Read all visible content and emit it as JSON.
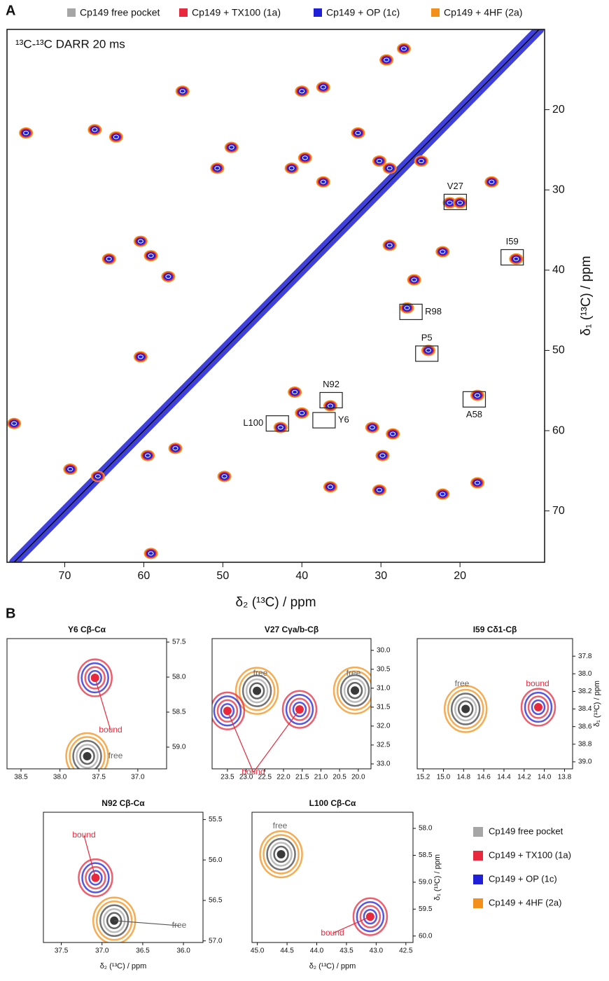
{
  "chart_data": [
    {
      "type": "contour",
      "panel_label": "A",
      "title": "¹³C-¹³C DARR 20 ms",
      "xlabel": "δ₂ (¹³C) / ppm",
      "ylabel": "δ₁ (¹³C) / ppm",
      "xlim": [
        77.3,
        9.3
      ],
      "ylim": [
        10,
        76.4
      ],
      "xticks": [
        70,
        60,
        50,
        40,
        30,
        20
      ],
      "yticks": [
        20,
        30,
        40,
        50,
        60,
        70
      ],
      "series": [
        {
          "name": "Cp149 free pocket",
          "color": "#a6a6a6"
        },
        {
          "name": "Cp149 + TX100 (1a)",
          "color": "#e8283c"
        },
        {
          "name": "Cp149 + OP (1c)",
          "color": "#1f1fd8"
        },
        {
          "name": "Cp149 + 4HF (2a)",
          "color": "#f39019"
        }
      ],
      "x": [
        74.9,
        66.2,
        63.5,
        55.1,
        48.9,
        50.7,
        41.3,
        39.6,
        37.3,
        32.9,
        30.2,
        28.9,
        40.0,
        37.3,
        29.3,
        27.1,
        24.9,
        21.3,
        20.0,
        16.0,
        22.2,
        12.9,
        28.9,
        25.8,
        26.7,
        60.4,
        59.1,
        56.9,
        64.4,
        60.4,
        40.9,
        40.0,
        42.7,
        36.4,
        31.1,
        28.5,
        29.8,
        30.2,
        22.2,
        17.8,
        17.8,
        24.0,
        69.3,
        65.8,
        59.5,
        56.0,
        49.8,
        36.4,
        76.4,
        59.1
      ],
      "values": [
        22.9,
        22.5,
        23.4,
        17.7,
        24.7,
        27.3,
        27.3,
        26.0,
        29.0,
        22.9,
        26.4,
        27.3,
        17.7,
        17.2,
        13.8,
        12.4,
        26.4,
        31.6,
        31.6,
        29.0,
        37.7,
        38.6,
        36.9,
        41.2,
        44.7,
        36.4,
        38.2,
        40.8,
        38.6,
        50.8,
        55.2,
        57.8,
        59.6,
        56.9,
        59.6,
        60.4,
        63.1,
        67.4,
        67.9,
        66.5,
        55.6,
        50.0,
        64.8,
        65.7,
        63.1,
        62.2,
        65.7,
        67.0,
        59.1,
        75.3
      ],
      "annotations": [
        {
          "text": "V27",
          "x": 20.6,
          "y": 31.5,
          "side": "top"
        },
        {
          "text": "I59",
          "x": 13.4,
          "y": 38.4,
          "side": "top"
        },
        {
          "text": "R98",
          "x": 26.2,
          "y": 45.2,
          "side": "right"
        },
        {
          "text": "P5",
          "x": 24.2,
          "y": 50.4,
          "side": "top"
        },
        {
          "text": "N92",
          "x": 36.3,
          "y": 56.2,
          "side": "top"
        },
        {
          "text": "Y6",
          "x": 37.2,
          "y": 58.7,
          "side": "right"
        },
        {
          "text": "L100",
          "x": 43.1,
          "y": 59.1,
          "side": "left"
        },
        {
          "text": "A58",
          "x": 18.2,
          "y": 56.1,
          "side": "bottom"
        }
      ]
    },
    {
      "type": "scatter",
      "panel_label": "B",
      "title": "Y6 Cβ-Cα",
      "xlim": [
        38.68,
        36.63
      ],
      "ylim": [
        57.45,
        59.31
      ],
      "xticks": [
        38.5,
        {
          "value": 38,
          "label": "38.0"
        },
        37.5,
        {
          "value": 37,
          "label": "37.0"
        }
      ],
      "yticks": [
        57.5,
        {
          "value": 58,
          "label": "58.0"
        },
        58.5,
        {
          "value": 59,
          "label": "59.0"
        }
      ],
      "series": [
        {
          "name": "free",
          "color": "#3a3a3a",
          "x": [
            37.65
          ],
          "values": [
            59.13
          ]
        },
        {
          "name": "bound",
          "color": "#e8283c",
          "x": [
            37.55
          ],
          "values": [
            58.01
          ]
        }
      ]
    },
    {
      "type": "scatter",
      "title": "V27 Cγa/b-Cβ",
      "xlim": [
        23.91,
        19.66
      ],
      "ylim": [
        29.69,
        33.13
      ],
      "xticks": [
        23.5,
        {
          "value": 23,
          "label": "23.0"
        },
        22.5,
        {
          "value": 22,
          "label": "22.0"
        },
        21.5,
        {
          "value": 21,
          "label": "21.0"
        },
        20.5,
        {
          "value": 20,
          "label": "20.0"
        }
      ],
      "yticks": [
        {
          "value": 30,
          "label": "30.0"
        },
        30.5,
        {
          "value": 31,
          "label": "31.0"
        },
        31.5,
        {
          "value": 32,
          "label": "32.0"
        },
        32.5,
        {
          "value": 33,
          "label": "33.0"
        }
      ],
      "series": [
        {
          "name": "free",
          "color": "#3a3a3a",
          "x": [
            22.71,
            20.09
          ],
          "values": [
            31.07,
            31.06
          ]
        },
        {
          "name": "bound",
          "color": "#e8283c",
          "x": [
            23.5,
            21.57
          ],
          "values": [
            31.6,
            31.56
          ]
        }
      ]
    },
    {
      "type": "scatter",
      "title": "I59 Cδ1-Cβ",
      "ylabel": "δ₁ (¹³C) / ppm",
      "xlim": [
        15.26,
        13.72
      ],
      "ylim": [
        37.6,
        39.08
      ],
      "xticks": [
        15.2,
        {
          "value": 15,
          "label": "15.0"
        },
        14.8,
        14.6,
        14.4,
        14.2,
        {
          "value": 14,
          "label": "14.0"
        },
        13.8
      ],
      "yticks": [
        37.8,
        {
          "value": 38,
          "label": "38.0"
        },
        38.2,
        38.4,
        38.6,
        38.8,
        {
          "value": 39,
          "label": "39.0"
        }
      ],
      "series": [
        {
          "name": "free",
          "color": "#3a3a3a",
          "x": [
            14.78
          ],
          "values": [
            38.4
          ]
        },
        {
          "name": "bound",
          "color": "#e8283c",
          "x": [
            14.06
          ],
          "values": [
            38.38
          ]
        }
      ]
    },
    {
      "type": "scatter",
      "title": "N92 Cβ-Cα",
      "xlabel": "δ₂ (¹³C) / ppm",
      "xlim": [
        37.72,
        35.76
      ],
      "ylim": [
        55.41,
        57.02
      ],
      "xticks": [
        37.5,
        {
          "value": 37,
          "label": "37.0"
        },
        36.5,
        {
          "value": 36,
          "label": "36.0"
        }
      ],
      "yticks": [
        55.5,
        {
          "value": 56,
          "label": "56.0"
        },
        56.5,
        {
          "value": 57,
          "label": "57.0"
        }
      ],
      "series": [
        {
          "name": "free",
          "color": "#3a3a3a",
          "x": [
            36.85
          ],
          "values": [
            56.75
          ]
        },
        {
          "name": "bound",
          "color": "#e8283c",
          "x": [
            37.08
          ],
          "values": [
            56.22
          ]
        }
      ]
    },
    {
      "type": "scatter",
      "title": "L100 Cβ-Cα",
      "xlabel": "δ₂ (¹³C) / ppm",
      "ylabel": "δ₁ (¹³C) / ppm",
      "xlim": [
        45.09,
        42.38
      ],
      "ylim": [
        57.7,
        60.12
      ],
      "xticks": [
        {
          "value": 45,
          "label": "45.0"
        },
        44.5,
        {
          "value": 44,
          "label": "44.0"
        },
        43.5,
        {
          "value": 43,
          "label": "43.0"
        },
        42.5
      ],
      "yticks": [
        {
          "value": 58,
          "label": "58.0"
        },
        58.5,
        {
          "value": 59,
          "label": "59.0"
        },
        59.5,
        {
          "value": 60,
          "label": "60.0"
        }
      ],
      "series": [
        {
          "name": "free",
          "color": "#3a3a3a",
          "x": [
            44.6
          ],
          "values": [
            58.48
          ]
        },
        {
          "name": "bound",
          "color": "#e8283c",
          "x": [
            43.1
          ],
          "values": [
            59.64
          ]
        }
      ]
    }
  ]
}
